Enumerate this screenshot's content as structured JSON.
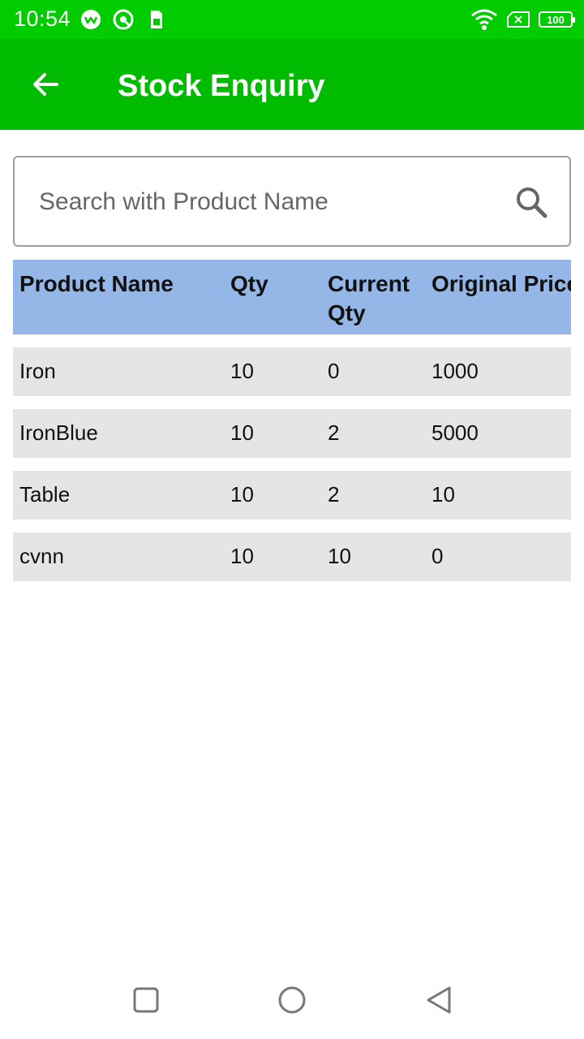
{
  "status_bar": {
    "time": "10:54",
    "battery": "100",
    "icons": [
      "wifi-signal-icon",
      "no-sim-icon",
      "battery-icon"
    ]
  },
  "app_bar": {
    "title": "Stock Enquiry",
    "back_icon": "arrow-left-icon",
    "background": "#00bb00"
  },
  "search": {
    "placeholder": "Search with Product Name",
    "value": "",
    "icon": "search-icon"
  },
  "table": {
    "header_bg": "#94b7e8",
    "row_bg": "#e5e5e5",
    "headers": [
      "Product Name",
      "Qty",
      "Current\nQty",
      "Original Price"
    ],
    "rows": [
      [
        "Iron",
        "10",
        "0",
        "1000"
      ],
      [
        "IronBlue",
        "10",
        "2",
        "5000"
      ],
      [
        "Table",
        "10",
        "2",
        "10"
      ],
      [
        "cvnn",
        "10",
        "10",
        "0"
      ]
    ]
  },
  "nav_bar": {
    "icons": [
      "recent-apps-icon",
      "home-icon",
      "back-icon"
    ]
  }
}
